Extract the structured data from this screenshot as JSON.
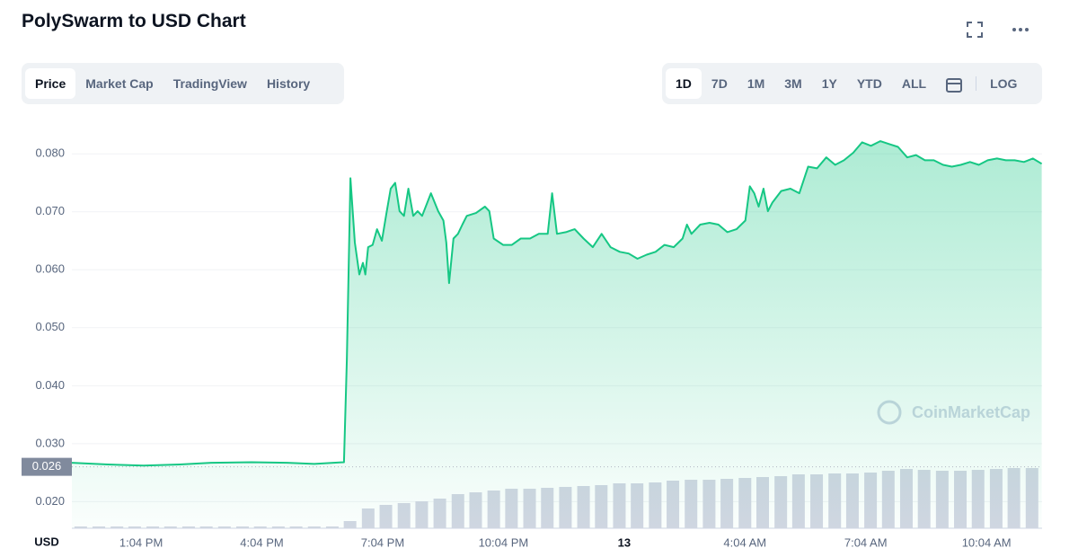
{
  "header": {
    "title": "PolySwarm to USD Chart"
  },
  "tabs": {
    "items": [
      "Price",
      "Market Cap",
      "TradingView",
      "History"
    ],
    "active": 0
  },
  "ranges": {
    "items": [
      "1D",
      "7D",
      "1M",
      "3M",
      "1Y",
      "YTD",
      "ALL"
    ],
    "active": 0,
    "log": "LOG"
  },
  "chart_data": {
    "type": "line",
    "watermark": "CoinMarketCap",
    "xlabel": "USD",
    "current_price": 0.026,
    "xlim": [
      11.35,
      35.45
    ],
    "ylim": [
      0.0154,
      0.0864
    ],
    "y2lim": [
      0,
      458
    ],
    "grid": true,
    "xticks": [
      {
        "value": 13.07,
        "label": "1:04 PM"
      },
      {
        "value": 16.07,
        "label": "4:04 PM"
      },
      {
        "value": 19.07,
        "label": "7:04 PM"
      },
      {
        "value": 22.07,
        "label": "10:04 PM"
      },
      {
        "value": 25.07,
        "label": "13"
      },
      {
        "value": 28.07,
        "label": "4:04 AM"
      },
      {
        "value": 31.07,
        "label": "7:04 AM"
      },
      {
        "value": 34.07,
        "label": "10:04 AM"
      }
    ],
    "yticks": [
      {
        "value": 0.02,
        "label": "0.020"
      },
      {
        "value": 0.03,
        "label": "0.030"
      },
      {
        "value": 0.04,
        "label": "0.040"
      },
      {
        "value": 0.05,
        "label": "0.050"
      },
      {
        "value": 0.06,
        "label": "0.060"
      },
      {
        "value": 0.07,
        "label": "0.070"
      },
      {
        "value": 0.08,
        "label": "0.080"
      }
    ],
    "series": [
      {
        "color": "#16c784",
        "x": [
          11.35,
          12.24,
          13.13,
          14.03,
          14.81,
          15.81,
          16.7,
          17.37,
          18.11,
          18.18,
          18.27,
          18.38,
          18.49,
          18.58,
          18.64,
          18.71,
          18.82,
          18.93,
          19.05,
          19.16,
          19.27,
          19.38,
          19.49,
          19.6,
          19.71,
          19.83,
          19.94,
          20.05,
          20.27,
          20.45,
          20.58,
          20.65,
          20.72,
          20.83,
          20.94,
          21.05,
          21.16,
          21.39,
          21.61,
          21.72,
          21.83,
          22.06,
          22.28,
          22.5,
          22.73,
          22.95,
          23.17,
          23.28,
          23.4,
          23.62,
          23.84,
          24.06,
          24.29,
          24.51,
          24.73,
          24.96,
          25.18,
          25.4,
          25.63,
          25.85,
          26.07,
          26.3,
          26.52,
          26.63,
          26.74,
          26.96,
          27.19,
          27.41,
          27.63,
          27.86,
          28.08,
          28.19,
          28.3,
          28.41,
          28.53,
          28.64,
          28.75,
          28.97,
          29.2,
          29.42,
          29.64,
          29.86,
          30.09,
          30.31,
          30.53,
          30.76,
          30.98,
          31.2,
          31.43,
          31.65,
          31.87,
          32.1,
          32.32,
          32.54,
          32.76,
          32.99,
          33.21,
          33.43,
          33.66,
          33.88,
          34.1,
          34.33,
          34.55,
          34.77,
          35.0,
          35.22,
          35.44
        ],
        "values": [
          0.0267,
          0.0264,
          0.0262,
          0.0264,
          0.0267,
          0.0268,
          0.0267,
          0.0265,
          0.0268,
          0.0445,
          0.0758,
          0.0647,
          0.0592,
          0.0612,
          0.0592,
          0.0639,
          0.0643,
          0.067,
          0.065,
          0.0696,
          0.074,
          0.075,
          0.0701,
          0.0693,
          0.074,
          0.0693,
          0.0701,
          0.0693,
          0.0732,
          0.0701,
          0.0685,
          0.0647,
          0.0577,
          0.0654,
          0.0662,
          0.0678,
          0.0693,
          0.0698,
          0.0709,
          0.0701,
          0.0654,
          0.0643,
          0.0643,
          0.0654,
          0.0654,
          0.0662,
          0.0662,
          0.0732,
          0.0662,
          0.0665,
          0.067,
          0.0654,
          0.0639,
          0.0662,
          0.0639,
          0.0631,
          0.0628,
          0.0619,
          0.0626,
          0.0631,
          0.0643,
          0.0639,
          0.0654,
          0.0678,
          0.0662,
          0.0678,
          0.0681,
          0.0678,
          0.0665,
          0.067,
          0.0685,
          0.0744,
          0.0732,
          0.0709,
          0.074,
          0.0701,
          0.0716,
          0.0736,
          0.074,
          0.0732,
          0.0778,
          0.0775,
          0.0794,
          0.0781,
          0.0789,
          0.0802,
          0.082,
          0.0814,
          0.0822,
          0.0817,
          0.0812,
          0.0794,
          0.0798,
          0.0789,
          0.0789,
          0.0781,
          0.0778,
          0.0781,
          0.0786,
          0.0781,
          0.0789,
          0.0792,
          0.0789,
          0.0789,
          0.0786,
          0.0792,
          0.0783
        ]
      },
      {
        "axis": "y2",
        "color": "#d3d6e3",
        "x": [
          11.57,
          12.02,
          12.47,
          12.91,
          13.36,
          13.8,
          14.25,
          14.69,
          15.14,
          15.59,
          16.03,
          16.48,
          16.92,
          17.37,
          17.82,
          18.26,
          18.71,
          19.15,
          19.6,
          20.04,
          20.49,
          20.94,
          21.38,
          21.83,
          22.27,
          22.72,
          23.16,
          23.61,
          24.06,
          24.5,
          24.95,
          25.39,
          25.84,
          26.28,
          26.73,
          27.18,
          27.62,
          28.07,
          28.51,
          28.96,
          29.4,
          29.85,
          30.3,
          30.74,
          31.19,
          31.63,
          32.08,
          32.52,
          32.97,
          33.42,
          33.86,
          34.31,
          34.75,
          35.2
        ],
        "values": [
          2,
          2,
          2,
          2,
          2,
          2,
          2,
          2,
          2,
          2,
          2,
          2,
          2,
          2,
          2,
          8,
          22,
          26,
          28,
          30,
          33,
          38,
          40,
          42,
          44,
          44,
          45,
          46,
          47,
          48,
          50,
          50,
          51,
          53,
          54,
          54,
          55,
          56,
          57,
          58,
          60,
          60,
          61,
          61,
          62,
          64,
          66,
          65,
          64,
          64,
          65,
          66,
          67,
          67
        ]
      }
    ]
  }
}
